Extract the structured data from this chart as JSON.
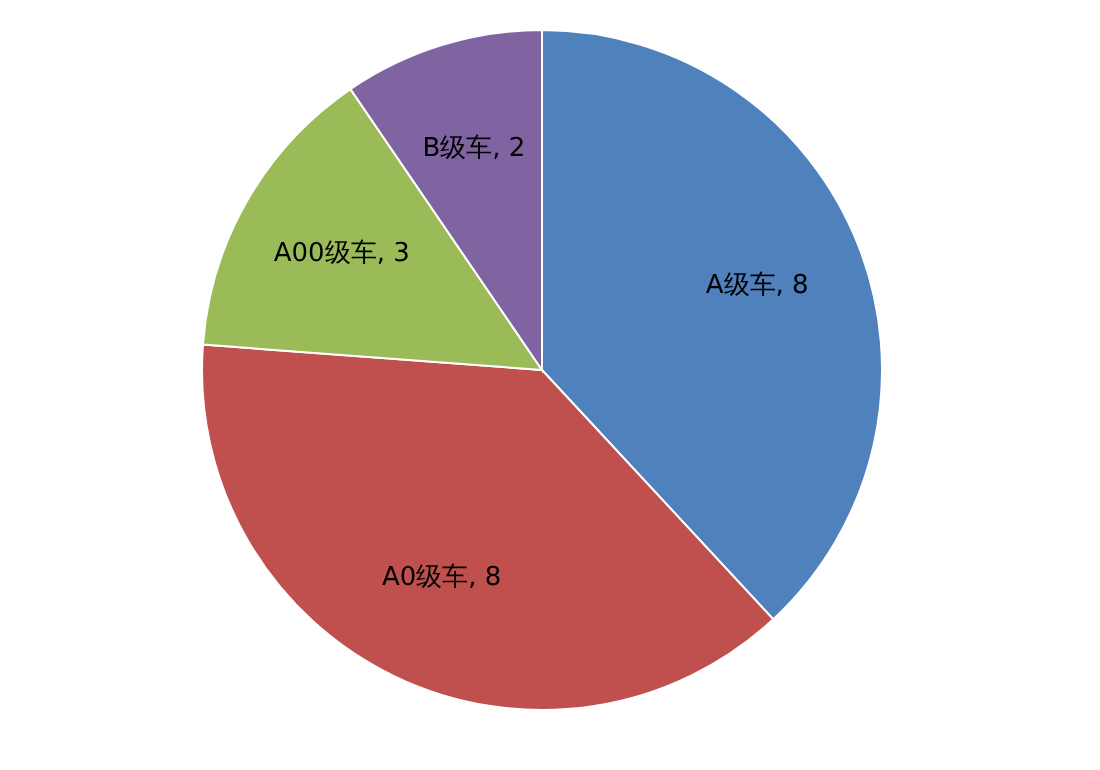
{
  "chart_data": {
    "type": "pie",
    "categories": [
      "A级车",
      "A0级车",
      "A00级车",
      "B级车"
    ],
    "values": [
      8,
      8,
      3,
      2
    ],
    "value_labels": [
      ", 8",
      ", 8",
      ", 3",
      ", 2"
    ],
    "colors": [
      "#4f81bd",
      "#c0504d",
      "#9bbb59",
      "#8064a2"
    ]
  }
}
